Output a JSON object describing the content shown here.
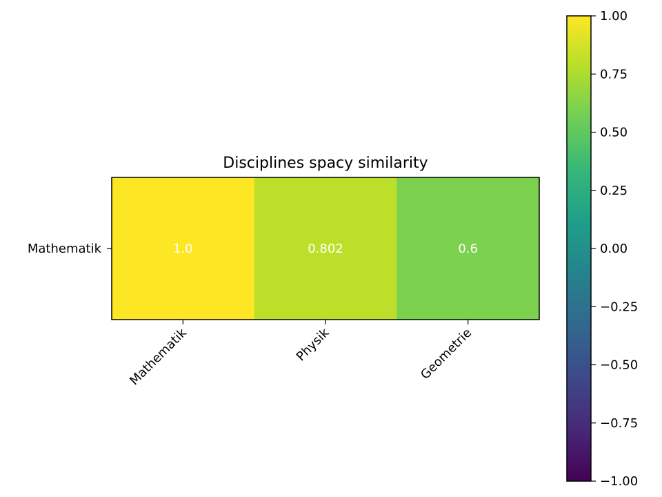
{
  "chart_data": {
    "type": "heatmap",
    "title": "Disciplines spacy similarity",
    "rows": [
      "Mathematik"
    ],
    "columns": [
      "Mathematik",
      "Physik",
      "Geometrie"
    ],
    "values": [
      [
        1.0,
        0.802,
        0.6
      ]
    ],
    "cell_labels": [
      [
        "1.0",
        "0.802",
        "0.6"
      ]
    ],
    "colormap": "viridis",
    "vmin": -1.0,
    "vmax": 1.0,
    "colorbar_ticks": [
      1.0,
      0.75,
      0.5,
      0.25,
      0.0,
      -0.25,
      -0.5,
      -0.75,
      -1.0
    ],
    "colorbar_tick_labels": [
      "1.00",
      "0.75",
      "0.50",
      "0.25",
      "0.00",
      "−0.25",
      "−0.50",
      "−0.75",
      "−1.00"
    ],
    "annotation_color": "#ffffff",
    "colormap_stops": [
      "#440154",
      "#482878",
      "#3e4989",
      "#31688e",
      "#26828e",
      "#1f9e89",
      "#35b779",
      "#6ece58",
      "#b5de2b",
      "#fde725"
    ]
  }
}
